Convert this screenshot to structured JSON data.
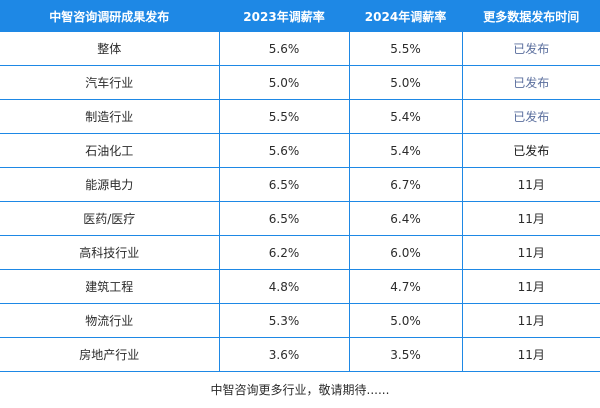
{
  "table": {
    "headers": [
      "中智咨询调研成果发布",
      "2023年调薪率",
      "2024年调薪率",
      "更多数据发布时间"
    ],
    "rows": [
      {
        "industry": "整体",
        "rate_2023": "5.6%",
        "rate_2024": "5.5%",
        "release": "已发布"
      },
      {
        "industry": "汽车行业",
        "rate_2023": "5.0%",
        "rate_2024": "5.0%",
        "release": "已发布"
      },
      {
        "industry": "制造行业",
        "rate_2023": "5.5%",
        "rate_2024": "5.4%",
        "release": "已发布"
      },
      {
        "industry": "石油化工",
        "rate_2023": "5.6%",
        "rate_2024": "5.4%",
        "release": "已发布"
      },
      {
        "industry": "能源电力",
        "rate_2023": "6.5%",
        "rate_2024": "6.7%",
        "release": "11月"
      },
      {
        "industry": "医药/医疗",
        "rate_2023": "6.5%",
        "rate_2024": "6.4%",
        "release": "11月"
      },
      {
        "industry": "高科技行业",
        "rate_2023": "6.2%",
        "rate_2024": "6.0%",
        "release": "11月"
      },
      {
        "industry": "建筑工程",
        "rate_2023": "4.8%",
        "rate_2024": "4.7%",
        "release": "11月"
      },
      {
        "industry": "物流行业",
        "rate_2023": "5.3%",
        "rate_2024": "5.0%",
        "release": "11月"
      },
      {
        "industry": "房地产行业",
        "rate_2023": "3.6%",
        "rate_2024": "3.5%",
        "release": "11月"
      }
    ],
    "footer": "中智咨询更多行业，敬请期待......"
  },
  "colors": {
    "header_bg": "#1e88e5",
    "header_text": "#ffffff",
    "grid_line": "#1e88e5",
    "published_text": "#5b6f9e"
  }
}
